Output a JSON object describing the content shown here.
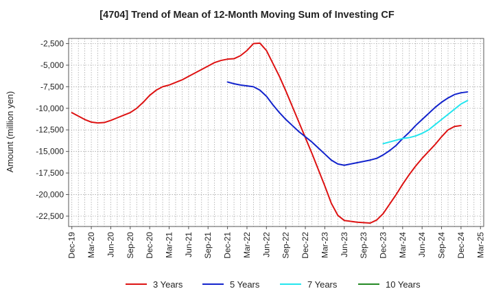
{
  "chart_data": {
    "type": "line",
    "title": "[4704]  Trend of Mean of 12-Month Moving Sum of Investing CF",
    "xlabel": "",
    "ylabel": "Amount (million yen)",
    "ylim": [
      -23700,
      -1900
    ],
    "yticks": [
      -2500,
      -5000,
      -7500,
      -10000,
      -12500,
      -15000,
      -17500,
      -20000,
      -22500
    ],
    "ytick_labels": [
      "-2,500",
      "-5,000",
      "-7,500",
      "-10,000",
      "-12,500",
      "-15,000",
      "-17,500",
      "-20,000",
      "-22,500"
    ],
    "x_count": 64,
    "xtick_labels": [
      "Dec-19",
      "Mar-20",
      "Jun-20",
      "Sep-20",
      "Dec-20",
      "Mar-21",
      "Jun-21",
      "Sep-21",
      "Dec-21",
      "Mar-22",
      "Jun-22",
      "Sep-22",
      "Dec-22",
      "Mar-23",
      "Jun-23",
      "Sep-23",
      "Dec-23",
      "Mar-24",
      "Jun-24",
      "Sep-24",
      "Dec-24",
      "Mar-25"
    ],
    "grid": true,
    "legend_position": "bottom",
    "series": [
      {
        "name": "3 Years",
        "color": "#dd1111",
        "start_index": 0,
        "values": [
          -10500,
          -10900,
          -11300,
          -11600,
          -11700,
          -11650,
          -11400,
          -11100,
          -10800,
          -10500,
          -10000,
          -9300,
          -8500,
          -7900,
          -7500,
          -7300,
          -7000,
          -6700,
          -6300,
          -5900,
          -5500,
          -5100,
          -4700,
          -4450,
          -4300,
          -4250,
          -3900,
          -3300,
          -2500,
          -2450,
          -3300,
          -4800,
          -6300,
          -8000,
          -9800,
          -11600,
          -13400,
          -15200,
          -17100,
          -19000,
          -21000,
          -22400,
          -23000,
          -23100,
          -23200,
          -23250,
          -23300,
          -22950,
          -22200,
          -21100,
          -20000,
          -18800,
          -17700,
          -16700,
          -15800,
          -15000,
          -14200,
          -13300,
          -12500,
          -12100,
          -12000
        ]
      },
      {
        "name": "5 Years",
        "color": "#1122cc",
        "start_index": 24,
        "values": [
          -6950,
          -7150,
          -7300,
          -7400,
          -7500,
          -7900,
          -8600,
          -9600,
          -10500,
          -11300,
          -12000,
          -12700,
          -13300,
          -13900,
          -14600,
          -15300,
          -16000,
          -16450,
          -16600,
          -16450,
          -16300,
          -16150,
          -16000,
          -15800,
          -15400,
          -14900,
          -14300,
          -13500,
          -12800,
          -12000,
          -11300,
          -10600,
          -9900,
          -9300,
          -8800,
          -8400,
          -8200,
          -8100
        ]
      },
      {
        "name": "7 Years",
        "color": "#22e5ee",
        "start_index": 48,
        "values": [
          -14100,
          -13900,
          -13700,
          -13500,
          -13400,
          -13200,
          -12900,
          -12500,
          -11900,
          -11300,
          -10700,
          -10100,
          -9500,
          -9100
        ]
      },
      {
        "name": "10 Years",
        "color": "#228822",
        "start_index": 0,
        "values": []
      }
    ]
  }
}
